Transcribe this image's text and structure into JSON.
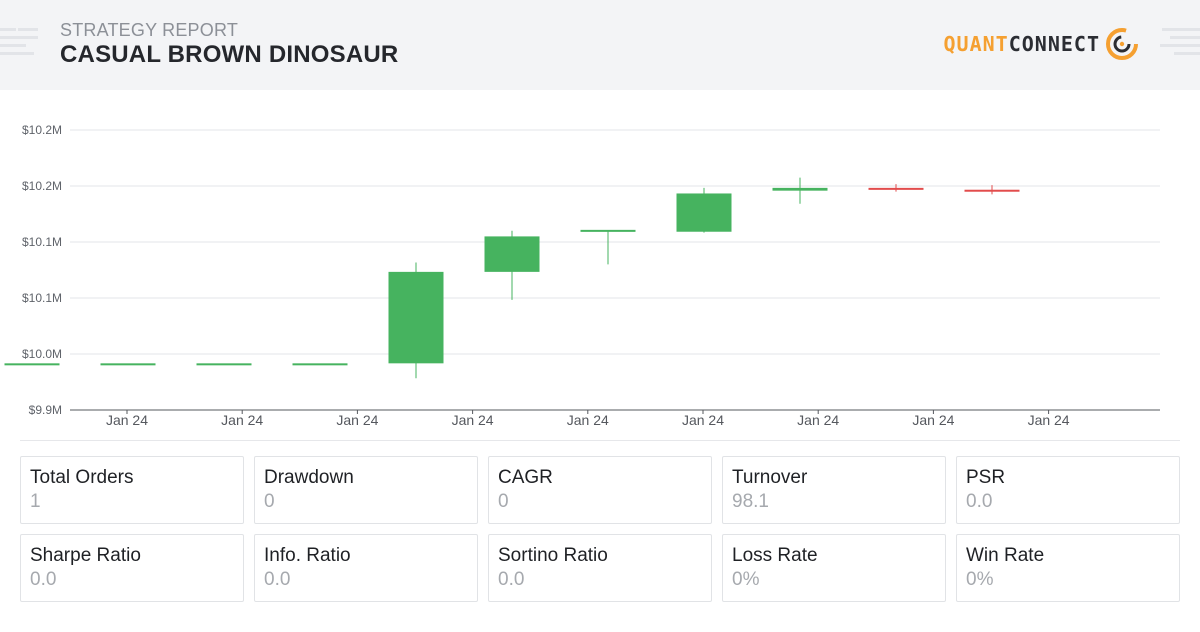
{
  "header": {
    "subtitle": "STRATEGY REPORT",
    "title": "CASUAL BROWN DINOSAUR",
    "logo": {
      "part1": "QUANT",
      "part2": "CONNECT",
      "icon": "quantconnect-logo-icon"
    }
  },
  "colors": {
    "header_bg": "#f3f4f6",
    "up": "#46b35f",
    "down": "#e24c4c",
    "brand_orange": "#f5a031"
  },
  "chart_data": {
    "type": "candlestick",
    "title": "",
    "xlabel": "",
    "ylabel": "",
    "y_ticks": [
      "$9.9M",
      "$10.0M",
      "$10.1M",
      "$10.1M",
      "$10.2M",
      "$10.2M"
    ],
    "x_ticks": [
      "Jan 24",
      "Jan 24",
      "Jan 24",
      "Jan 24",
      "Jan 24",
      "Jan 24",
      "Jan 24",
      "Jan 24",
      "Jan 24"
    ],
    "ylim": [
      9.95,
      10.25
    ],
    "grid": true,
    "candles": [
      {
        "open": 10.0,
        "high": 10.0,
        "low": 10.0,
        "close": 10.0
      },
      {
        "open": 10.0,
        "high": 10.0,
        "low": 10.0,
        "close": 10.0
      },
      {
        "open": 10.0,
        "high": 10.0,
        "low": 10.0,
        "close": 10.0
      },
      {
        "open": 10.0,
        "high": 10.0,
        "low": 10.0,
        "close": 10.0
      },
      {
        "open": 10.0,
        "high": 10.108,
        "low": 9.984,
        "close": 10.098
      },
      {
        "open": 10.098,
        "high": 10.142,
        "low": 10.068,
        "close": 10.136
      },
      {
        "open": 10.141,
        "high": 10.142,
        "low": 10.106,
        "close": 10.143
      },
      {
        "open": 10.141,
        "high": 10.188,
        "low": 10.14,
        "close": 10.182
      },
      {
        "open": 10.185,
        "high": 10.199,
        "low": 10.171,
        "close": 10.188
      },
      {
        "open": 10.188,
        "high": 10.192,
        "low": 10.184,
        "close": 10.187
      },
      {
        "open": 10.186,
        "high": 10.191,
        "low": 10.181,
        "close": 10.185
      }
    ]
  },
  "stats": [
    {
      "label": "Total Orders",
      "value": "1"
    },
    {
      "label": "Drawdown",
      "value": "0"
    },
    {
      "label": "CAGR",
      "value": "0"
    },
    {
      "label": "Turnover",
      "value": "98.1"
    },
    {
      "label": "PSR",
      "value": "0.0"
    },
    {
      "label": "Sharpe Ratio",
      "value": "0.0"
    },
    {
      "label": "Info. Ratio",
      "value": "0.0"
    },
    {
      "label": "Sortino Ratio",
      "value": "0.0"
    },
    {
      "label": "Loss Rate",
      "value": "0%"
    },
    {
      "label": "Win Rate",
      "value": "0%"
    }
  ]
}
